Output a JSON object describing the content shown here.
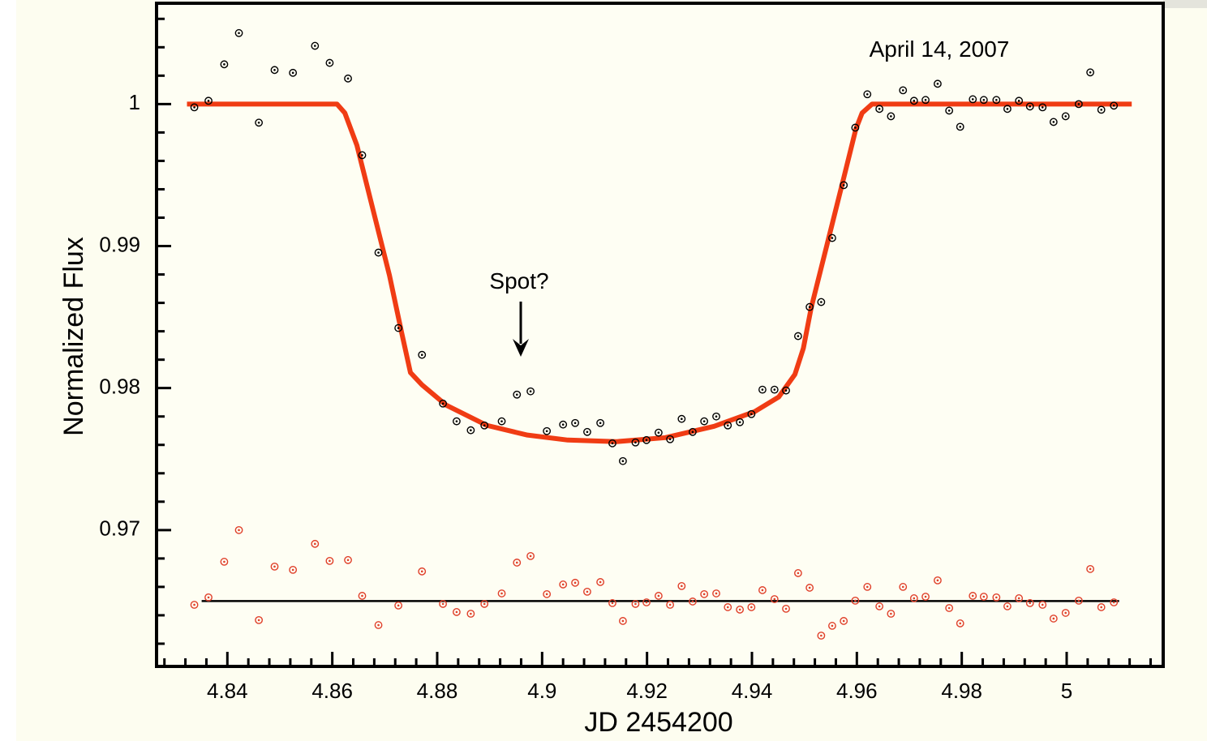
{
  "chart_data": {
    "type": "scatter",
    "xlabel": "JD 2454200",
    "ylabel": "Normalized Flux",
    "annotations": [
      "April 14, 2007",
      "Spot?"
    ],
    "xlim": [
      4.8265,
      5.0184
    ],
    "ylim": [
      0.9604,
      1.0071
    ],
    "xticks": [
      4.84,
      4.86,
      4.88,
      4.9,
      4.92,
      4.94,
      4.96,
      4.98,
      5
    ],
    "yticks": [
      0.97,
      0.98,
      0.99,
      1
    ],
    "xminorticks": [
      4.828,
      4.832,
      4.836,
      4.844,
      4.848,
      4.852,
      4.856,
      4.864,
      4.868,
      4.872,
      4.876,
      4.884,
      4.888,
      4.892,
      4.896,
      4.904,
      4.908,
      4.912,
      4.916,
      4.924,
      4.928,
      4.932,
      4.936,
      4.944,
      4.948,
      4.952,
      4.956,
      4.964,
      4.968,
      4.972,
      4.976,
      4.984,
      4.988,
      4.992,
      4.996,
      5.004,
      5.008,
      5.012,
      5.016
    ],
    "yminorticks": [
      0.962,
      0.964,
      0.966,
      0.968,
      0.972,
      0.974,
      0.976,
      0.978,
      0.982,
      0.984,
      0.986,
      0.988,
      0.992,
      0.994,
      0.996,
      0.998,
      1.002,
      1.004,
      1.006
    ],
    "series": [
      {
        "style": "line",
        "color": "#f03c14",
        "x": [
          4.8323,
          4.8609,
          4.8624,
          4.8647,
          4.8678,
          4.8709,
          4.8732,
          4.8749,
          4.8771,
          4.8817,
          4.8895,
          4.8972,
          4.9049,
          4.9142,
          4.9235,
          4.9328,
          4.9405,
          4.9451,
          4.9482,
          4.9498,
          4.9513,
          4.9544,
          4.9575,
          4.9598,
          4.961,
          4.9629,
          5.0124
        ],
        "values": [
          1,
          1,
          0.99937,
          0.99709,
          0.99251,
          0.98794,
          0.98394,
          0.98109,
          0.98023,
          0.9788,
          0.97737,
          0.97669,
          0.97634,
          0.97623,
          0.97651,
          0.97731,
          0.97834,
          0.97937,
          0.98097,
          0.9828,
          0.98566,
          0.99023,
          0.9948,
          0.99823,
          0.99937,
          1,
          1
        ]
      },
      {
        "style": "line-thin",
        "color": "#000000",
        "x": [
          4.8351,
          5.01
        ],
        "values": [
          0.965,
          0.965
        ]
      },
      {
        "style": "markers",
        "color": "#000000",
        "x": [
          4.8337,
          4.8364,
          4.8394,
          4.8422,
          4.846,
          4.849,
          4.8525,
          4.8567,
          4.8595,
          4.863,
          4.8657,
          4.8688,
          4.8726,
          4.8771,
          4.8811,
          4.8837,
          4.8864,
          4.889,
          4.8923,
          4.8952,
          4.8978,
          4.9009,
          4.904,
          4.9063,
          4.9086,
          4.9111,
          4.9134,
          4.9154,
          4.9178,
          4.9199,
          4.9222,
          4.9244,
          4.9266,
          4.9287,
          4.9309,
          4.9332,
          4.9354,
          4.9377,
          4.9399,
          4.942,
          4.9443,
          4.9465,
          4.9488,
          4.951,
          4.9532,
          4.9553,
          4.9575,
          4.9597,
          4.962,
          4.9643,
          4.9665,
          4.9688,
          4.9709,
          4.9731,
          4.9754,
          4.9776,
          4.9797,
          4.9821,
          4.9842,
          4.9866,
          4.9887,
          4.9909,
          4.993,
          4.9954,
          4.9975,
          4.9998,
          5.0023,
          5.0045,
          5.0066,
          5.009
        ],
        "values": [
          0.99977,
          1.00023,
          1.0028,
          1.005,
          0.99869,
          1.0024,
          1.0022,
          1.0041,
          1.0029,
          1.0018,
          0.9964,
          0.98954,
          0.98423,
          0.98234,
          0.97891,
          0.97766,
          0.97703,
          0.97737,
          0.97766,
          0.97954,
          0.97977,
          0.97697,
          0.97743,
          0.97754,
          0.97691,
          0.97754,
          0.97611,
          0.97486,
          0.97617,
          0.97634,
          0.97686,
          0.9764,
          0.97783,
          0.97691,
          0.97766,
          0.978,
          0.97737,
          0.9776,
          0.97817,
          0.97989,
          0.97989,
          0.97983,
          0.98366,
          0.98571,
          0.98606,
          0.99057,
          0.99429,
          0.99834,
          1.00069,
          0.99966,
          0.99914,
          1.00097,
          1.00023,
          1.00029,
          1.00143,
          0.99954,
          0.9984,
          1.00034,
          1.00029,
          1.00029,
          0.99966,
          1.00023,
          0.99983,
          0.99977,
          0.99874,
          0.99914,
          1,
          1.00223,
          0.9996,
          0.99989
        ]
      },
      {
        "style": "markers",
        "color": "#e0402a",
        "x": [
          4.8337,
          4.8364,
          4.8394,
          4.8422,
          4.846,
          4.849,
          4.8525,
          4.8567,
          4.8595,
          4.863,
          4.8657,
          4.8688,
          4.8726,
          4.8771,
          4.8811,
          4.8837,
          4.8864,
          4.889,
          4.8923,
          4.8952,
          4.8978,
          4.9009,
          4.904,
          4.9063,
          4.9086,
          4.9111,
          4.9134,
          4.9154,
          4.9178,
          4.9199,
          4.9222,
          4.9244,
          4.9266,
          4.9287,
          4.9309,
          4.9332,
          4.9354,
          4.9377,
          4.9399,
          4.942,
          4.9443,
          4.9465,
          4.9488,
          4.951,
          4.9532,
          4.9553,
          4.9575,
          4.9597,
          4.962,
          4.9643,
          4.9665,
          4.9688,
          4.9709,
          4.9731,
          4.9754,
          4.9776,
          4.9797,
          4.9821,
          4.9842,
          4.9866,
          4.9887,
          4.9909,
          4.993,
          4.9954,
          4.9975,
          4.9998,
          5.0023,
          5.0045,
          5.0066,
          5.009
        ],
        "values": [
          0.96474,
          0.96526,
          0.96777,
          0.97,
          0.96366,
          0.96743,
          0.9672,
          0.96903,
          0.96783,
          0.96789,
          0.96537,
          0.96331,
          0.96469,
          0.96709,
          0.9648,
          0.96423,
          0.96411,
          0.9648,
          0.96554,
          0.96771,
          0.96817,
          0.96549,
          0.96617,
          0.96629,
          0.96566,
          0.96634,
          0.96486,
          0.9636,
          0.9648,
          0.96491,
          0.96537,
          0.96474,
          0.96606,
          0.96497,
          0.96549,
          0.96554,
          0.96457,
          0.9644,
          0.96457,
          0.96577,
          0.96514,
          0.96446,
          0.96697,
          0.96594,
          0.96257,
          0.96326,
          0.9636,
          0.96503,
          0.966,
          0.96463,
          0.96411,
          0.966,
          0.9652,
          0.96531,
          0.96646,
          0.96451,
          0.96343,
          0.96537,
          0.96531,
          0.96526,
          0.96463,
          0.9652,
          0.96486,
          0.96474,
          0.96377,
          0.96417,
          0.96503,
          0.96726,
          0.96457,
          0.96491
        ]
      }
    ]
  }
}
